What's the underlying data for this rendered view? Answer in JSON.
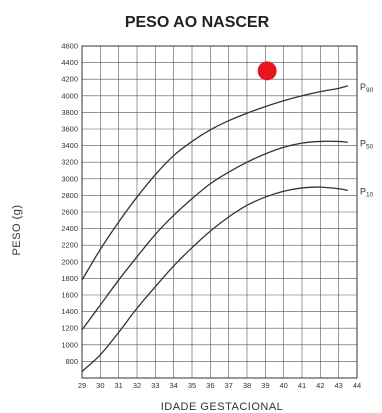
{
  "chart_data": {
    "type": "line",
    "title": "PESO AO NASCER",
    "xlabel": "IDADE GESTACIONAL",
    "ylabel": "PESO (g)",
    "xlim": [
      29,
      44
    ],
    "ylim": [
      600,
      4600
    ],
    "x_ticks": [
      29,
      30,
      31,
      32,
      33,
      34,
      35,
      36,
      37,
      38,
      39,
      40,
      41,
      42,
      43,
      44
    ],
    "y_ticks": [
      800,
      1000,
      1200,
      1400,
      1600,
      1800,
      2000,
      2200,
      2400,
      2600,
      2800,
      3000,
      3200,
      3400,
      3600,
      3800,
      4000,
      4200,
      4400,
      4600
    ],
    "grid": true,
    "series": [
      {
        "name": "P90",
        "label_main": "P",
        "label_sub": "90",
        "color": "#333333",
        "x": [
          29,
          30,
          31,
          32,
          33,
          34,
          35,
          36,
          37,
          38,
          39,
          40,
          41,
          42,
          43,
          43.5
        ],
        "values": [
          1780,
          2150,
          2480,
          2780,
          3050,
          3280,
          3450,
          3590,
          3700,
          3790,
          3870,
          3940,
          4000,
          4050,
          4090,
          4120
        ]
      },
      {
        "name": "P50",
        "label_main": "P",
        "label_sub": "50",
        "color": "#333333",
        "x": [
          29,
          30,
          31,
          32,
          33,
          34,
          35,
          36,
          37,
          38,
          39,
          40,
          41,
          42,
          43,
          43.5
        ],
        "values": [
          1180,
          1480,
          1780,
          2060,
          2330,
          2560,
          2760,
          2940,
          3080,
          3200,
          3300,
          3380,
          3430,
          3450,
          3450,
          3440
        ]
      },
      {
        "name": "P10",
        "label_main": "P",
        "label_sub": "10",
        "color": "#333333",
        "x": [
          29,
          30,
          31,
          32,
          33,
          34,
          35,
          36,
          37,
          38,
          39,
          40,
          41,
          42,
          43,
          43.5
        ],
        "values": [
          680,
          880,
          1150,
          1440,
          1700,
          1950,
          2170,
          2370,
          2540,
          2680,
          2780,
          2850,
          2890,
          2900,
          2880,
          2860
        ]
      }
    ],
    "marker": {
      "x": 39.1,
      "y": 4300,
      "color": "#e8141e"
    }
  }
}
